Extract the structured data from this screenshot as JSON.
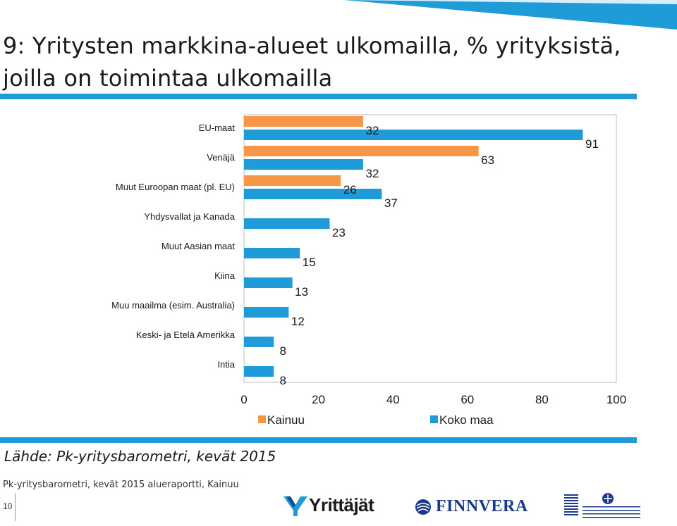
{
  "title": "9: Yritysten markkina-alueet ulkomailla, % yrityksistä, joilla on toimintaa ulkomailla",
  "source": "Lähde: Pk-yritysbarometri, kevät 2015",
  "footer": {
    "text": "Pk-yritysbarometri, kevät 2015 alueraportti, Kainuu",
    "page_number": "10"
  },
  "logos": {
    "yrittajat": "Yrittäjät",
    "finnvera": "FINNVERA",
    "ministry": "TYÖ- JA ELINKEINOMINISTERIÖ"
  },
  "colors": {
    "kainuu": "#f79646",
    "koko_maa": "#1f9bd7",
    "accent_band": "#1f9bd7"
  },
  "chart_data": {
    "type": "bar",
    "orientation": "horizontal",
    "categories": [
      "EU-maat",
      "Venäjä",
      "Muut Euroopan maat (pl. EU)",
      "Yhdysvallat ja Kanada",
      "Muut Aasian maat",
      "Kiina",
      "Muu maailma (esim. Australia)",
      "Keski- ja Etelä Amerikka",
      "Intia"
    ],
    "series": [
      {
        "name": "Kainuu",
        "values": [
          32,
          63,
          26,
          null,
          null,
          null,
          null,
          null,
          null
        ]
      },
      {
        "name": "Koko maa",
        "values": [
          91,
          32,
          37,
          23,
          15,
          13,
          12,
          8,
          8
        ]
      }
    ],
    "xlim": [
      0,
      100
    ],
    "xticks": [
      "0",
      "20",
      "40",
      "60",
      "80",
      "100"
    ],
    "legend_position": "bottom",
    "grid": false
  }
}
